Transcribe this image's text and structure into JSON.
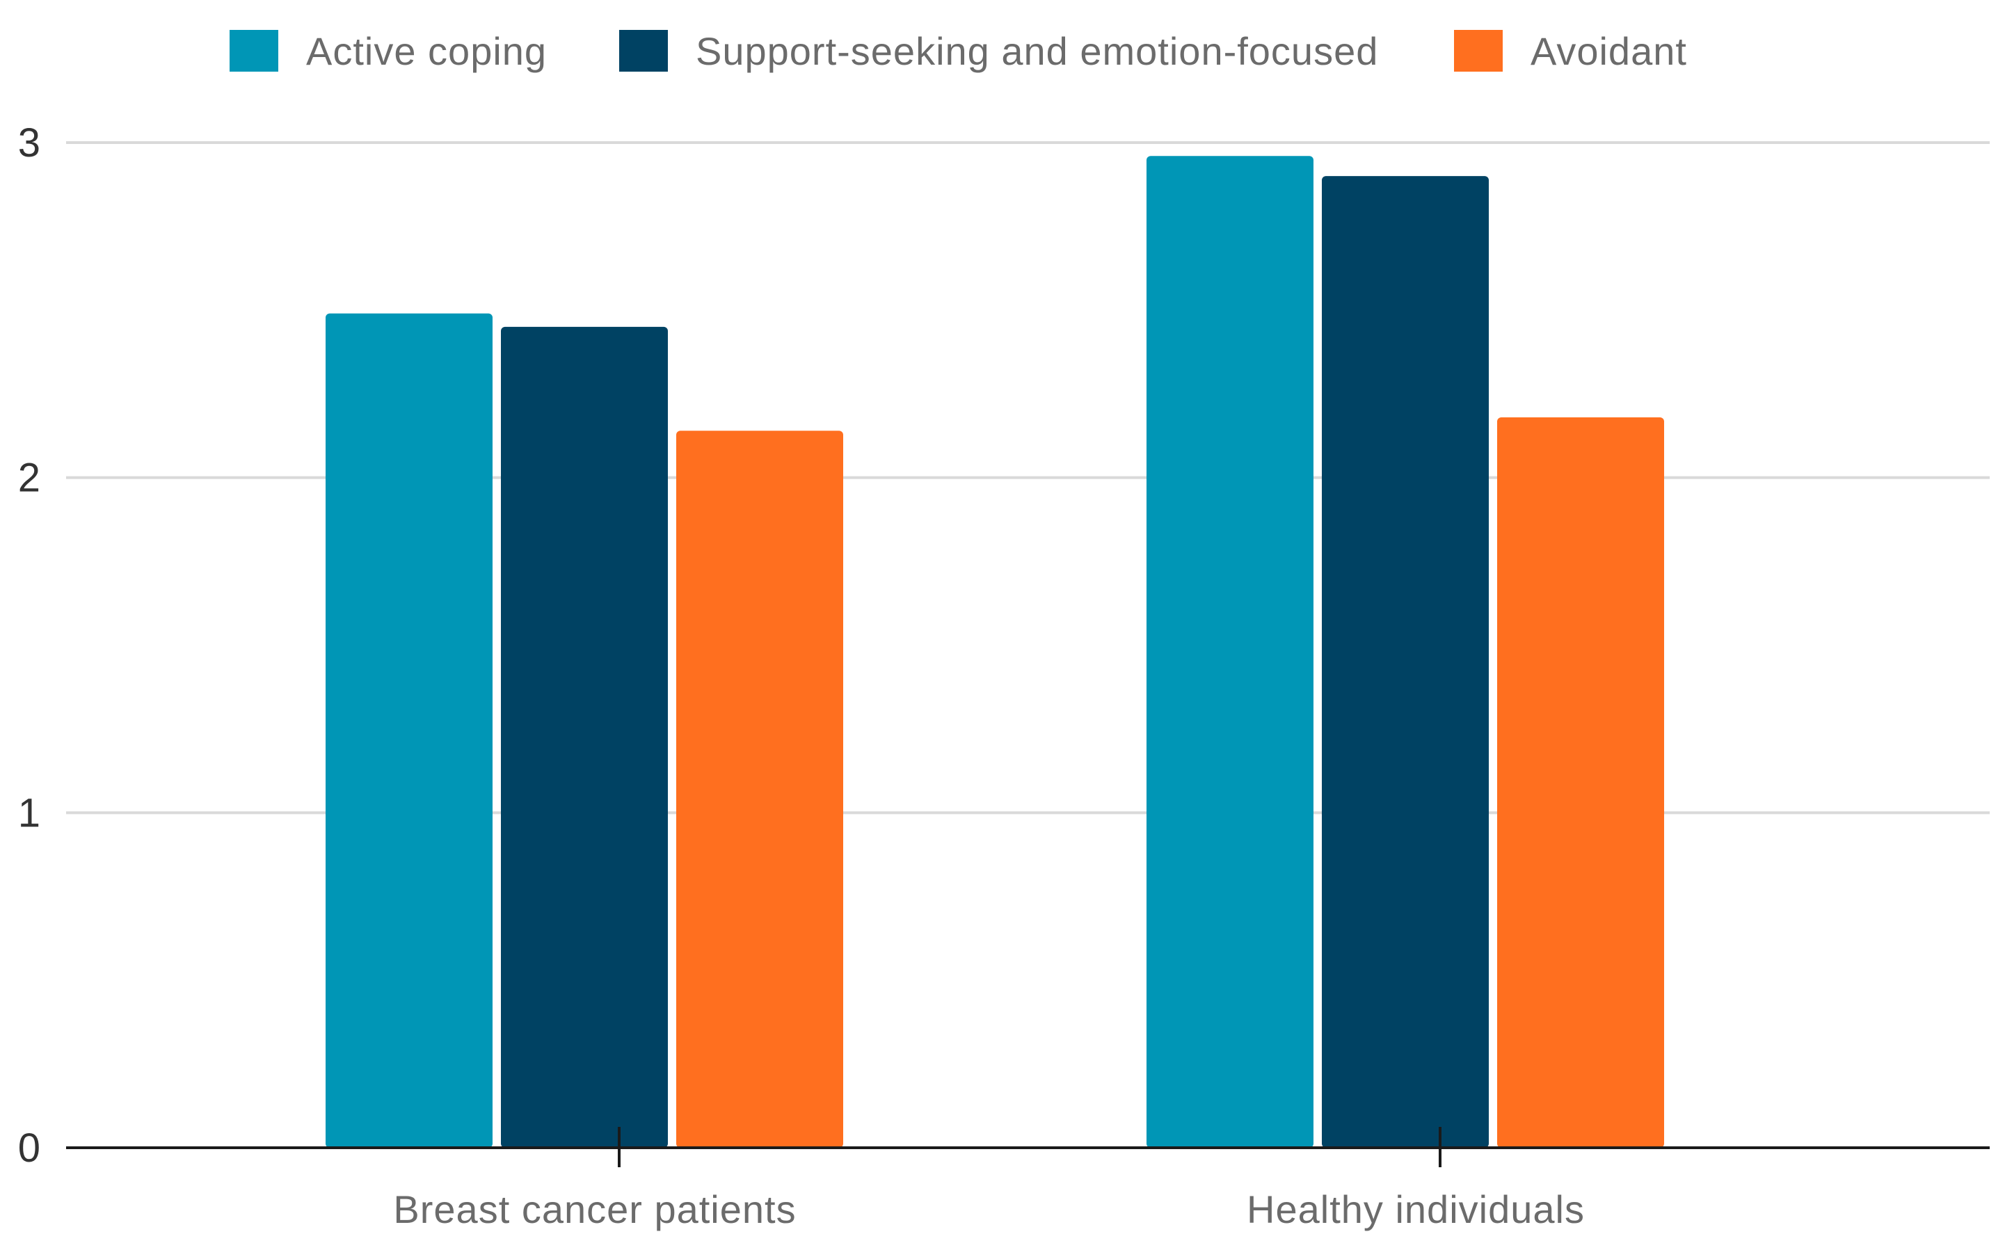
{
  "chart_data": {
    "type": "bar",
    "title": "",
    "xlabel": "",
    "ylabel": "",
    "ylim": [
      0,
      3
    ],
    "yticks": [
      "0",
      "1",
      "2",
      "3"
    ],
    "grid": true,
    "legend_position": "top-center",
    "categories": [
      "Breast cancer patients",
      "Healthy individuals"
    ],
    "series": [
      {
        "name": "Active coping",
        "color": "#0096b6",
        "values": [
          2.49,
          2.96
        ]
      },
      {
        "name": "Support-seeking and  emotion-focused",
        "color": "#004263",
        "values": [
          2.45,
          2.9
        ]
      },
      {
        "name": "Avoidant",
        "color": "#ff6f1f",
        "values": [
          2.14,
          2.18
        ]
      }
    ]
  }
}
